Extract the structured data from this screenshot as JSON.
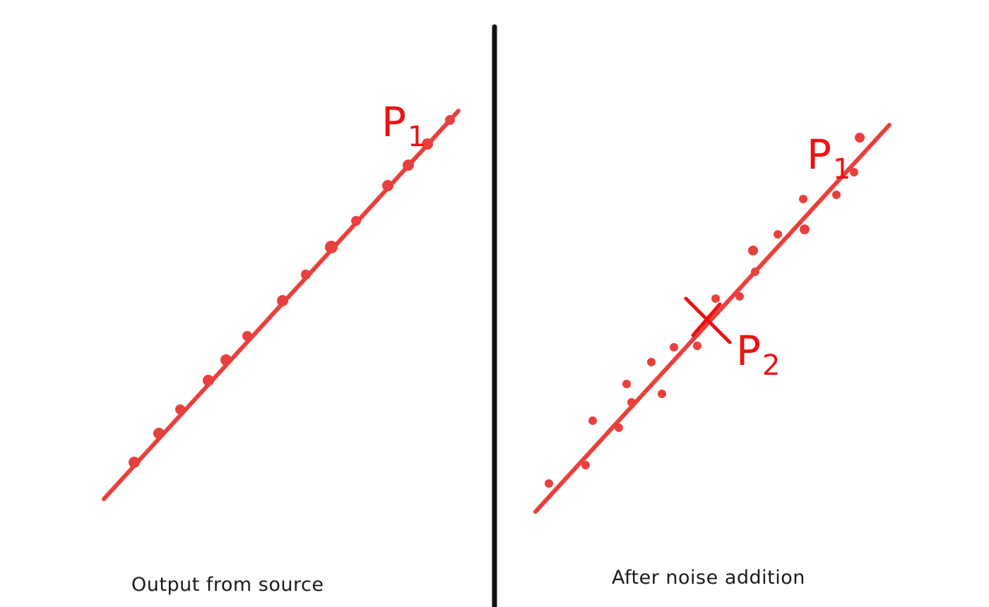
{
  "colors": {
    "line": "#e8403c",
    "point": "#e8403c",
    "label": "#ee1111",
    "divider": "#111111"
  },
  "panels": {
    "left": {
      "caption": "Output from source",
      "label_p1": {
        "letter": "P",
        "sub": "1"
      },
      "points_on_line": 14
    },
    "right": {
      "caption": "After noise addition",
      "label_p1": {
        "letter": "P",
        "sub": "1"
      },
      "label_p2": {
        "letter": "P",
        "sub": "2"
      },
      "marker": "x-mark"
    }
  }
}
